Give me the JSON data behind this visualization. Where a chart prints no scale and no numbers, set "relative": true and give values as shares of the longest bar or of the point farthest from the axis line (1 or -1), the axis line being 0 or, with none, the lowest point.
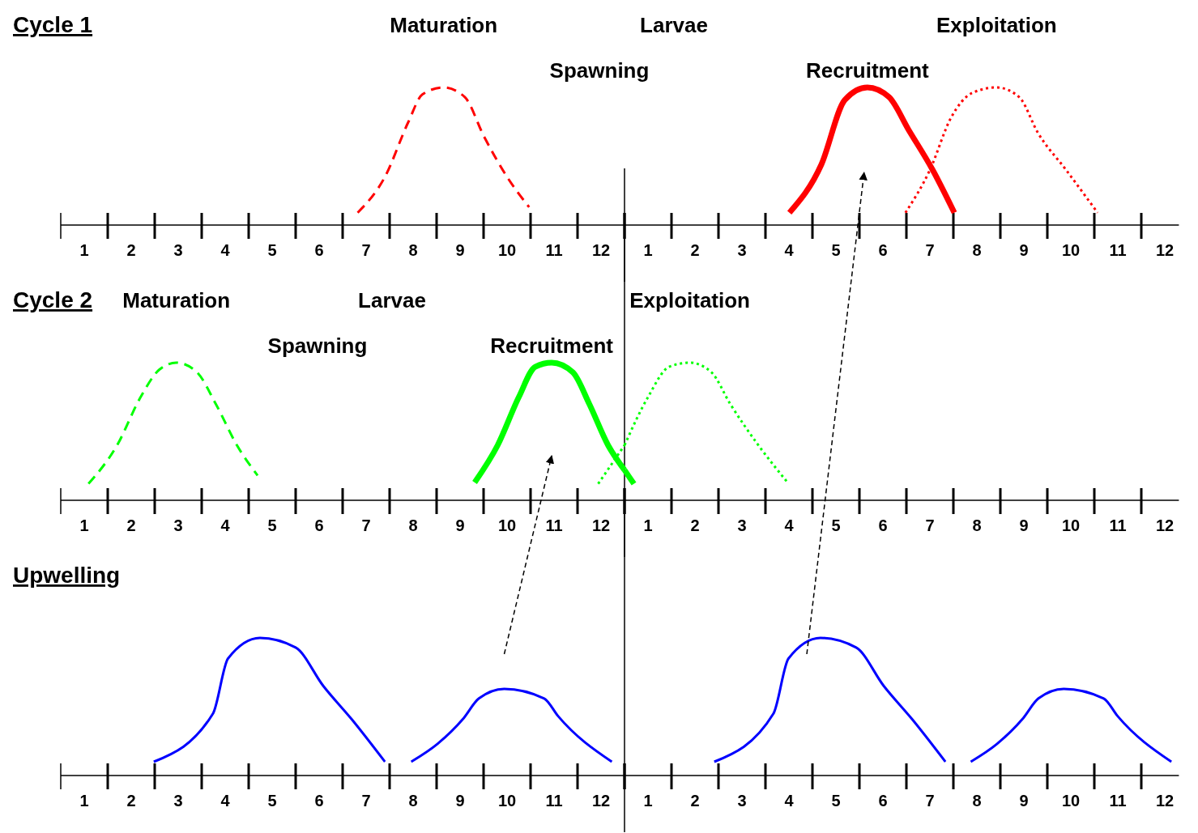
{
  "chart_data": [
    {
      "type": "line",
      "title": "Cycle 1",
      "relative": true,
      "xlim": [
        0.5,
        12.5
      ],
      "xticks": [
        {
          "value": 0.5,
          "label": null
        },
        {
          "value": 1.5,
          "label": null
        },
        {
          "value": 2.5,
          "label": null
        },
        {
          "value": 3.5,
          "label": null
        },
        {
          "value": 4.5,
          "label": null
        },
        {
          "value": 5.5,
          "label": null
        },
        {
          "value": 6.5,
          "label": null
        },
        {
          "value": 7.5,
          "label": null
        },
        {
          "value": 8.5,
          "label": null
        },
        {
          "value": 9.5,
          "label": null
        },
        {
          "value": 10.5,
          "label": null
        },
        {
          "value": 11.5,
          "label": null
        },
        {
          "value": 12.5,
          "label": null
        },
        1,
        2,
        3,
        4,
        5,
        6,
        7,
        8,
        9,
        10,
        11,
        12
      ],
      "series": [
        {
          "name": "Maturation",
          "color": "#ff0000",
          "line_style": "dashed",
          "x": [
            6.82,
            7.4,
            7.9,
            8.2,
            8.65,
            9.1,
            9.5,
            10.0,
            10.47
          ],
          "values": [
            0.09,
            0.35,
            0.75,
            0.95,
            1,
            0.93,
            0.65,
            0.35,
            0.13
          ]
        }
      ],
      "annotations": [
        "Spawning"
      ],
      "ref_lines": [
        {
          "axis": "x",
          "value": 12.5,
          "color": "#000000"
        }
      ]
    },
    {
      "type": "line",
      "relative": true,
      "xlim": [
        0.5,
        12.3
      ],
      "xticks": [
        {
          "value": 0.5,
          "label": null
        },
        {
          "value": 1.5,
          "label": null
        },
        {
          "value": 2.5,
          "label": null
        },
        {
          "value": 3.5,
          "label": null
        },
        {
          "value": 4.5,
          "label": null
        },
        {
          "value": 5.5,
          "label": null
        },
        {
          "value": 6.5,
          "label": null
        },
        {
          "value": 7.5,
          "label": null
        },
        {
          "value": 8.5,
          "label": null
        },
        {
          "value": 9.5,
          "label": null
        },
        {
          "value": 10.5,
          "label": null
        },
        {
          "value": 11.5,
          "label": null
        },
        1,
        2,
        3,
        4,
        5,
        6,
        7,
        8,
        9,
        10,
        11,
        12
      ],
      "series": [
        {
          "name": "Recruitment",
          "color": "#ff0000",
          "line_style": "solid",
          "x": [
            4.01,
            4.69,
            5.19,
            5.67,
            6.13,
            6.55,
            7.06,
            7.52
          ],
          "values": [
            0.09,
            0.44,
            0.91,
            1,
            0.93,
            0.69,
            0.4,
            0.09
          ]
        },
        {
          "name": "Exploitation",
          "color": "#ff0000",
          "line_style": "dotted",
          "x": [
            6.48,
            7.0,
            7.45,
            7.9,
            8.42,
            8.9,
            9.3,
            9.9,
            10.57
          ],
          "values": [
            0.09,
            0.4,
            0.78,
            0.96,
            1,
            0.93,
            0.67,
            0.4,
            0.09
          ]
        }
      ],
      "annotations": [
        "Larvae"
      ]
    },
    {
      "type": "line",
      "title": "Cycle 2",
      "relative": true,
      "xlim": [
        0.5,
        12.5
      ],
      "xticks": [
        {
          "value": 0.5,
          "label": null
        },
        {
          "value": 1.5,
          "label": null
        },
        {
          "value": 2.5,
          "label": null
        },
        {
          "value": 3.5,
          "label": null
        },
        {
          "value": 4.5,
          "label": null
        },
        {
          "value": 5.5,
          "label": null
        },
        {
          "value": 6.5,
          "label": null
        },
        {
          "value": 7.5,
          "label": null
        },
        {
          "value": 8.5,
          "label": null
        },
        {
          "value": 9.5,
          "label": null
        },
        {
          "value": 10.5,
          "label": null
        },
        {
          "value": 11.5,
          "label": null
        },
        {
          "value": 12.5,
          "label": null
        },
        1,
        2,
        3,
        4,
        5,
        6,
        7,
        8,
        9,
        10,
        11,
        12
      ],
      "series": [
        {
          "name": "Maturation",
          "color": "#00ff00",
          "line_style": "dashed",
          "x": [
            1.09,
            1.7,
            2.2,
            2.6,
            2.96,
            3.4,
            3.8,
            4.25,
            4.69
          ],
          "values": [
            0.12,
            0.4,
            0.75,
            0.95,
            1,
            0.93,
            0.7,
            0.4,
            0.18
          ]
        },
        {
          "name": "Recruitment",
          "color": "#00ff00",
          "line_style": "solid",
          "x": [
            9.31,
            9.8,
            10.25,
            10.6,
            10.95,
            11.4,
            11.75,
            12.15,
            12.5
          ],
          "values": [
            0.13,
            0.4,
            0.75,
            0.97,
            1,
            0.93,
            0.7,
            0.4,
            0.22
          ]
        },
        {
          "color": "#00ff00",
          "line_style": "dotted",
          "x": [
            11.94,
            12.5
          ],
          "values": [
            0.12,
            0.4
          ]
        }
      ],
      "annotations": [
        "Spawning",
        "Larvae"
      ],
      "ref_lines": [
        {
          "axis": "x",
          "value": 12.5,
          "color": "#000000"
        }
      ]
    },
    {
      "type": "line",
      "relative": true,
      "xlim": [
        0.5,
        12.3
      ],
      "xticks": [
        {
          "value": 0.5,
          "label": null
        },
        {
          "value": 1.5,
          "label": null
        },
        {
          "value": 2.5,
          "label": null
        },
        {
          "value": 3.5,
          "label": null
        },
        {
          "value": 4.5,
          "label": null
        },
        {
          "value": 5.5,
          "label": null
        },
        {
          "value": 6.5,
          "label": null
        },
        {
          "value": 7.5,
          "label": null
        },
        {
          "value": 8.5,
          "label": null
        },
        {
          "value": 9.5,
          "label": null
        },
        {
          "value": 10.5,
          "label": null
        },
        {
          "value": 11.5,
          "label": null
        },
        1,
        2,
        3,
        4,
        5,
        6,
        7,
        8,
        9,
        10,
        11,
        12
      ],
      "series": [
        {
          "color": "#00ff00",
          "line_style": "solid",
          "x": [
            0.5,
            0.7
          ],
          "values": [
            0.22,
            0.12
          ]
        },
        {
          "name": "Exploitation",
          "color": "#00ff00",
          "line_style": "dotted",
          "x": [
            0.5,
            1.0,
            1.45,
            1.89,
            2.35,
            2.75,
            3.35,
            3.97
          ],
          "values": [
            0.4,
            0.75,
            0.97,
            1,
            0.93,
            0.7,
            0.4,
            0.13
          ]
        }
      ]
    },
    {
      "type": "line",
      "title": "Upwelling",
      "relative": true,
      "xlim": [
        0.5,
        12.5
      ],
      "xticks": [
        {
          "value": 0.5,
          "label": null
        },
        {
          "value": 1.5,
          "label": null
        },
        {
          "value": 2.5,
          "label": null
        },
        {
          "value": 3.5,
          "label": null
        },
        {
          "value": 4.5,
          "label": null
        },
        {
          "value": 5.5,
          "label": null
        },
        {
          "value": 6.5,
          "label": null
        },
        {
          "value": 7.5,
          "label": null
        },
        {
          "value": 8.5,
          "label": null
        },
        {
          "value": 9.5,
          "label": null
        },
        {
          "value": 10.5,
          "label": null
        },
        {
          "value": 11.5,
          "label": null
        },
        {
          "value": 12.5,
          "label": null
        },
        1,
        2,
        3,
        4,
        5,
        6,
        7,
        8,
        9,
        10,
        11,
        12
      ],
      "series": [
        {
          "color": "#0000ff",
          "line_style": "solid",
          "x": [
            2.48,
            3.74,
            4.06,
            4.74,
            5.5,
            6.09,
            6.69,
            7.4,
            7.7,
            7.96,
            8.52,
            9.06,
            9.4,
            9.94,
            10.79,
            11.09,
            12.23
          ],
          "values": [
            0.1,
            0.45,
            0.85,
            1,
            0.93,
            0.65,
            0.41,
            0.1,
            null,
            0.1,
            0.23,
            0.41,
            0.56,
            0.63,
            0.56,
            0.43,
            0.1
          ]
        }
      ],
      "ref_lines": [
        {
          "axis": "x",
          "value": 12.5,
          "color": "#000000"
        }
      ]
    },
    {
      "type": "line",
      "relative": true,
      "xlim": [
        0.5,
        12.3
      ],
      "xticks": [
        {
          "value": 0.5,
          "label": null
        },
        {
          "value": 1.5,
          "label": null
        },
        {
          "value": 2.5,
          "label": null
        },
        {
          "value": 3.5,
          "label": null
        },
        {
          "value": 4.5,
          "label": null
        },
        {
          "value": 5.5,
          "label": null
        },
        {
          "value": 6.5,
          "label": null
        },
        {
          "value": 7.5,
          "label": null
        },
        {
          "value": 8.5,
          "label": null
        },
        {
          "value": 9.5,
          "label": null
        },
        {
          "value": 10.5,
          "label": null
        },
        {
          "value": 11.5,
          "label": null
        },
        1,
        2,
        3,
        4,
        5,
        6,
        7,
        8,
        9,
        10,
        11,
        12
      ],
      "series": [
        {
          "color": "#0000ff",
          "line_style": "solid",
          "x": [
            2.41,
            3.67,
            3.99,
            4.67,
            5.43,
            6.02,
            6.62,
            7.33,
            7.6,
            7.87,
            8.43,
            8.97,
            9.31,
            9.85,
            10.7,
            11.0,
            12.14
          ],
          "values": [
            0.1,
            0.45,
            0.85,
            1,
            0.93,
            0.65,
            0.41,
            0.1,
            null,
            0.1,
            0.23,
            0.41,
            0.56,
            0.63,
            0.56,
            0.43,
            0.1
          ]
        }
      ]
    }
  ]
}
